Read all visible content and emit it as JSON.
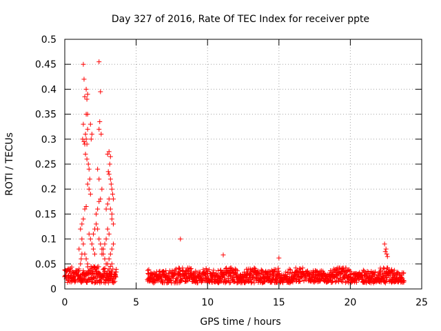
{
  "chart_data": {
    "type": "scatter",
    "title": "Day 327 of 2016, Rate Of TEC Index for receiver ppte",
    "xlabel": "GPS time / hours",
    "ylabel": "ROTI / TECUs",
    "xlim": [
      0,
      25
    ],
    "ylim": [
      0,
      0.5
    ],
    "x_ticks": [
      "0",
      "5",
      "10",
      "15",
      "20",
      "25"
    ],
    "y_ticks": [
      "0",
      "0.05",
      "0.1",
      "0.15",
      "0.2",
      "0.25",
      "0.3",
      "0.35",
      "0.4",
      "0.45",
      "0.5"
    ],
    "grid": true,
    "marker": "+",
    "color": "#ff0000",
    "series": [
      {
        "x": [
          1.3,
          1.35,
          1.5,
          1.6,
          1.4,
          1.55,
          1.3,
          1.6,
          1.45,
          1.5,
          1.25,
          1.35,
          1.4,
          1.55,
          1.6,
          1.5,
          1.45,
          1.55,
          1.65,
          1.7,
          1.75,
          1.6,
          1.7,
          1.8,
          1.5,
          1.4,
          1.3,
          1.2,
          1.1,
          1.0,
          1.2,
          1.3,
          1.4,
          1.5,
          1.6,
          1.7,
          1.8,
          1.9,
          2.0,
          2.1,
          1.0,
          1.1,
          1.15,
          1.2,
          1.25,
          1.0,
          2.4,
          2.5,
          2.45,
          2.4,
          2.55,
          2.3,
          2.4,
          2.6,
          2.5,
          2.4,
          2.3,
          2.2,
          2.1,
          2.0,
          2.2,
          2.3,
          2.4,
          2.5,
          2.6,
          2.7,
          2.8,
          2.9,
          3.0,
          3.1,
          3.2,
          3.3,
          3.4,
          3.0,
          3.1,
          3.2,
          3.15,
          3.05,
          3.1,
          3.2,
          3.25,
          3.3,
          3.35,
          3.4,
          3.3,
          3.4,
          3.0,
          3.1,
          2.9,
          2.8,
          2.7,
          2.6,
          2.9,
          3.0,
          3.1,
          3.2,
          3.3,
          3.1,
          3.2,
          3.3,
          1.9,
          2.0,
          2.1,
          2.2,
          2.3,
          2.0,
          2.1,
          1.9,
          1.8,
          1.85,
          8.1,
          11.1,
          15.0,
          22.4,
          22.5,
          22.45,
          22.55,
          22.6
        ],
        "y": [
          0.45,
          0.42,
          0.4,
          0.39,
          0.385,
          0.38,
          0.33,
          0.32,
          0.31,
          0.3,
          0.3,
          0.295,
          0.29,
          0.29,
          0.35,
          0.35,
          0.27,
          0.26,
          0.25,
          0.24,
          0.22,
          0.21,
          0.2,
          0.19,
          0.165,
          0.16,
          0.14,
          0.13,
          0.12,
          0.08,
          0.1,
          0.09,
          0.07,
          0.06,
          0.05,
          0.11,
          0.1,
          0.09,
          0.08,
          0.07,
          0.04,
          0.05,
          0.06,
          0.07,
          0.03,
          0.02,
          0.455,
          0.395,
          0.335,
          0.32,
          0.31,
          0.24,
          0.22,
          0.2,
          0.18,
          0.175,
          0.16,
          0.15,
          0.12,
          0.11,
          0.13,
          0.12,
          0.1,
          0.09,
          0.08,
          0.07,
          0.06,
          0.05,
          0.05,
          0.06,
          0.07,
          0.08,
          0.09,
          0.27,
          0.275,
          0.265,
          0.25,
          0.235,
          0.23,
          0.22,
          0.21,
          0.2,
          0.19,
          0.18,
          0.14,
          0.13,
          0.12,
          0.11,
          0.1,
          0.09,
          0.08,
          0.07,
          0.16,
          0.17,
          0.18,
          0.16,
          0.15,
          0.04,
          0.045,
          0.05,
          0.04,
          0.035,
          0.03,
          0.03,
          0.025,
          0.03,
          0.035,
          0.31,
          0.33,
          0.3,
          0.1,
          0.068,
          0.062,
          0.09,
          0.08,
          0.075,
          0.07,
          0.065
        ]
      }
    ],
    "background_bands": [
      {
        "x_from": 0.0,
        "x_to": 3.6,
        "y_low": 0.012,
        "y_high": 0.045
      },
      {
        "x_from": 5.8,
        "x_to": 23.8,
        "y_low": 0.012,
        "y_high": 0.042
      }
    ]
  }
}
